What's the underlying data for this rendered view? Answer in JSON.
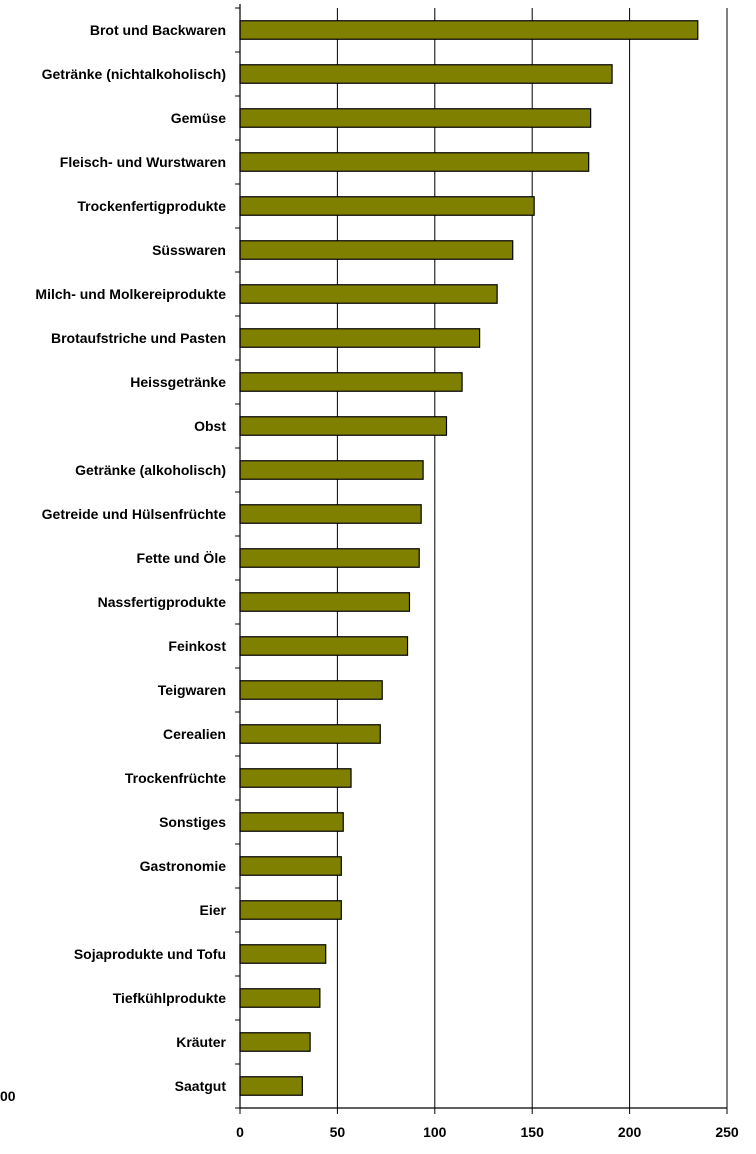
{
  "chart_data": {
    "type": "bar",
    "orientation": "horizontal",
    "categories": [
      "Brot und Backwaren",
      "Getränke (nichtalkoholisch)",
      "Gemüse",
      "Fleisch- und Wurstwaren",
      "Trockenfertigprodukte",
      "Süsswaren",
      "Milch- und Molkereiprodukte",
      "Brotaufstriche und Pasten",
      "Heissgetränke",
      "Obst",
      "Getränke (alkoholisch)",
      "Getreide und Hülsenfrüchte",
      "Fette und Öle",
      "Nassfertigprodukte",
      "Feinkost",
      "Teigwaren",
      "Cerealien",
      "Trockenfrüchte",
      "Sonstiges",
      "Gastronomie",
      "Eier",
      "Sojaprodukte und Tofu",
      "Tiefkühlprodukte",
      "Kräuter",
      "Saatgut"
    ],
    "values": [
      235,
      191,
      180,
      179,
      151,
      140,
      132,
      123,
      114,
      106,
      94,
      93,
      92,
      87,
      86,
      73,
      72,
      57,
      53,
      52,
      52,
      44,
      41,
      36,
      32
    ],
    "title": "",
    "xlabel": "",
    "ylabel": "",
    "xlim": [
      0,
      250
    ],
    "xticks": [
      "0",
      "50",
      "100",
      "150",
      "200",
      "250"
    ],
    "grid": "vertical",
    "legend": "none",
    "bar_color": "#808000",
    "bar_edge_color": "#000000",
    "stray_label": "00"
  }
}
